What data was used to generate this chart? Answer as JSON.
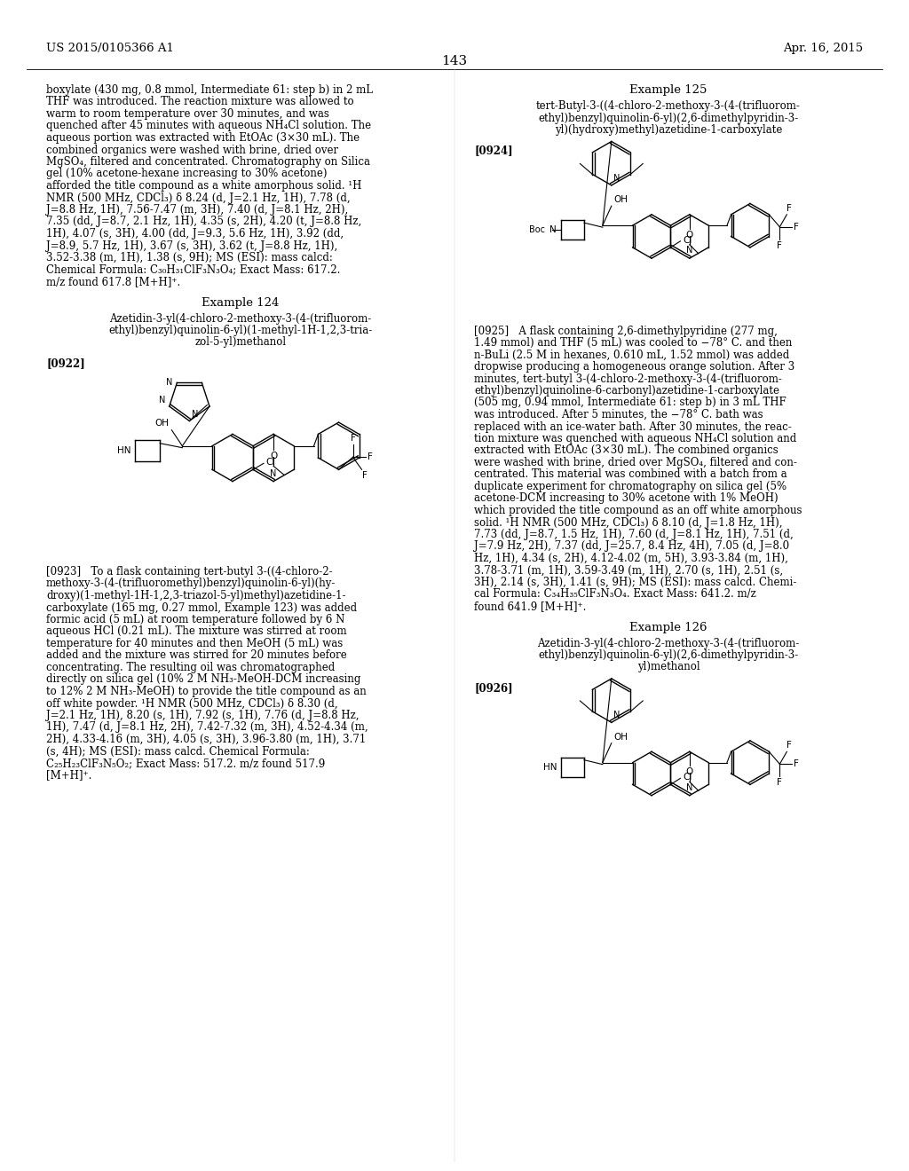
{
  "page_header_left": "US 2015/0105366 A1",
  "page_header_right": "Apr. 16, 2015",
  "page_number": "143",
  "background_color": "#ffffff",
  "text_color": "#000000",
  "left_col_text_top": [
    "boxylate (430 mg, 0.8 mmol, Intermediate 61: step b) in 2 mL",
    "THF was introduced. The reaction mixture was allowed to",
    "warm to room temperature over 30 minutes, and was",
    "quenched after 45 minutes with aqueous NH₄Cl solution. The",
    "aqueous portion was extracted with EtOAc (3×30 mL). The",
    "combined organics were washed with brine, dried over",
    "MgSO₄, filtered and concentrated. Chromatography on Silica",
    "gel (10% acetone-hexane increasing to 30% acetone)",
    "afforded the title compound as a white amorphous solid. ¹H",
    "NMR (500 MHz, CDCl₃) δ 8.24 (d, J=2.1 Hz, 1H), 7.78 (d,",
    "J=8.8 Hz, 1H), 7.56-7.47 (m, 3H), 7.40 (d, J=8.1 Hz, 2H),",
    "7.35 (dd, J=8.7, 2.1 Hz, 1H), 4.35 (s, 2H), 4.20 (t, J=8.8 Hz,",
    "1H), 4.07 (s, 3H), 4.00 (dd, J=9.3, 5.6 Hz, 1H), 3.92 (dd,",
    "J=8.9, 5.7 Hz, 1H), 3.67 (s, 3H), 3.62 (t, J=8.8 Hz, 1H),",
    "3.52-3.38 (m, 1H), 1.38 (s, 9H); MS (ESI): mass calcd:",
    "Chemical Formula: C₃₀H₃₁ClF₃N₃O₄; Exact Mass: 617.2.",
    "m/z found 617.8 [M+H]⁺."
  ],
  "example124_header": "Example 124",
  "example124_title_lines": [
    "Azetidin-3-yl(4-chloro-2-methoxy-3-(4-(trifluorom-",
    "ethyl)benzyl)quinolin-6-yl)(1-methyl-1H-1,2,3-tria-",
    "zol-5-yl)methanol"
  ],
  "example124_ref": "[0922]",
  "example125_header": "Example 125",
  "example125_title_lines": [
    "tert-Butyl-3-((4-chloro-2-methoxy-3-(4-(trifluorom-",
    "ethyl)benzyl)quinolin-6-yl)(2,6-dimethylpyridin-3-",
    "yl)(hydroxy)methyl)azetidine-1-carboxylate"
  ],
  "example125_ref": "[0924]",
  "para0923_lines": [
    "[0923]   To a flask containing tert-butyl 3-((4-chloro-2-",
    "methoxy-3-(4-(trifluoromethyl)benzyl)quinolin-6-yl)(hy-",
    "droxy)(1-methyl-1H-1,2,3-triazol-5-yl)methyl)azetidine-1-",
    "carboxylate (165 mg, 0.27 mmol, Example 123) was added",
    "formic acid (5 mL) at room temperature followed by 6 N",
    "aqueous HCl (0.21 mL). The mixture was stirred at room",
    "temperature for 40 minutes and then MeOH (5 mL) was",
    "added and the mixture was stirred for 20 minutes before",
    "concentrating. The resulting oil was chromatographed",
    "directly on silica gel (10% 2 M NH₃-MeOH-DCM increasing",
    "to 12% 2 M NH₃-MeOH) to provide the title compound as an",
    "off white powder. ¹H NMR (500 MHz, CDCl₃) δ 8.30 (d,",
    "J=2.1 Hz, 1H), 8.20 (s, 1H), 7.92 (s, 1H), 7.76 (d, J=8.8 Hz,",
    "1H), 7.47 (d, J=8.1 Hz, 2H), 7.42-7.32 (m, 3H), 4.52-4.34 (m,",
    "2H), 4.33-4.16 (m, 3H), 4.05 (s, 3H), 3.96-3.80 (m, 1H), 3.71",
    "(s, 4H); MS (ESI): mass calcd. Chemical Formula:",
    "C₂₅H₂₃ClF₃N₅O₂; Exact Mass: 517.2. m/z found 517.9",
    "[M+H]⁺."
  ],
  "para0925_lines": [
    "[0925]   A flask containing 2,6-dimethylpyridine (277 mg,",
    "1.49 mmol) and THF (5 mL) was cooled to −78° C. and then",
    "n-BuLi (2.5 M in hexanes, 0.610 mL, 1.52 mmol) was added",
    "dropwise producing a homogeneous orange solution. After 3",
    "minutes, tert-butyl 3-(4-chloro-2-methoxy-3-(4-(trifluorom-",
    "ethyl)benzyl)quinoline-6-carbonyl)azetidine-1-carboxylate",
    "(505 mg, 0.94 mmol, Intermediate 61: step b) in 3 mL THF",
    "was introduced. After 5 minutes, the −78° C. bath was",
    "replaced with an ice-water bath. After 30 minutes, the reac-",
    "tion mixture was quenched with aqueous NH₄Cl solution and",
    "extracted with EtOAc (3×30 mL). The combined organics",
    "were washed with brine, dried over MgSO₄, filtered and con-",
    "centrated. This material was combined with a batch from a",
    "duplicate experiment for chromatography on silica gel (5%",
    "acetone-DCM increasing to 30% acetone with 1% MeOH)",
    "which provided the title compound as an off white amorphous",
    "solid. ¹H NMR (500 MHz, CDCl₃) δ 8.10 (d, J=1.8 Hz, 1H),",
    "7.73 (dd, J=8.7, 1.5 Hz, 1H), 7.60 (d, J=8.1 Hz, 1H), 7.51 (d,",
    "J=7.9 Hz, 2H), 7.37 (dd, J=25.7, 8.4 Hz, 4H), 7.05 (d, J=8.0",
    "Hz, 1H), 4.34 (s, 2H), 4.12-4.02 (m, 5H), 3.93-3.84 (m, 1H),",
    "3.78-3.71 (m, 1H), 3.59-3.49 (m, 1H), 2.70 (s, 1H), 2.51 (s,",
    "3H), 2.14 (s, 3H), 1.41 (s, 9H); MS (ESI): mass calcd. Chemi-",
    "cal Formula: C₃₄H₃₅ClF₃N₃O₄. Exact Mass: 641.2. m/z",
    "found 641.9 [M+H]⁺."
  ],
  "example126_header": "Example 126",
  "example126_title_lines": [
    "Azetidin-3-yl(4-chloro-2-methoxy-3-(4-(trifluorom-",
    "ethyl)benzyl)quinolin-6-yl)(2,6-dimethylpyridin-3-",
    "yl)methanol"
  ],
  "example126_ref": "[0926]"
}
